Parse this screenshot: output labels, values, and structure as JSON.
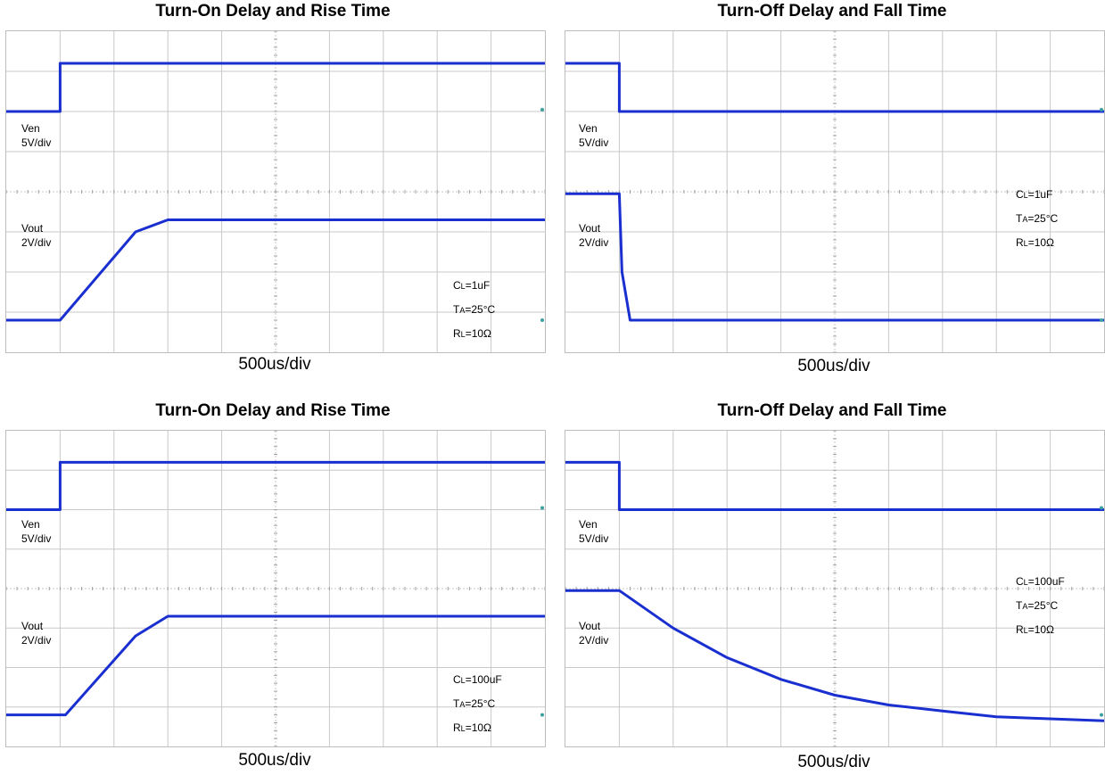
{
  "chart_data": [
    {
      "type": "line",
      "title": "Turn-On Delay and Rise Time",
      "x_unit_label": "500us/div",
      "x_divisions": 10,
      "y_divisions": 8,
      "traces": [
        {
          "name": "Ven",
          "scale": "5V/div",
          "points": [
            [
              0,
              2
            ],
            [
              1,
              2
            ],
            [
              1,
              0.8
            ],
            [
              10,
              0.8
            ]
          ]
        },
        {
          "name": "Vout",
          "scale": "2V/div",
          "points": [
            [
              0,
              7.2
            ],
            [
              1,
              7.2
            ],
            [
              2.4,
              5
            ],
            [
              3,
              4.7
            ],
            [
              10,
              4.7
            ]
          ]
        }
      ],
      "conditions": {
        "cl": "1uF",
        "ta": "25°C",
        "rl": "10Ω"
      }
    },
    {
      "type": "line",
      "title": "Turn-Off Delay and Fall Time",
      "x_unit_label": "500us/div",
      "x_divisions": 10,
      "y_divisions": 8,
      "traces": [
        {
          "name": "Ven",
          "scale": "5V/div",
          "points": [
            [
              0,
              0.8
            ],
            [
              1,
              0.8
            ],
            [
              1,
              2
            ],
            [
              10,
              2
            ]
          ]
        },
        {
          "name": "Vout",
          "scale": "2V/div",
          "points": [
            [
              0,
              4.05
            ],
            [
              1,
              4.05
            ],
            [
              1.05,
              6
            ],
            [
              1.2,
              7.2
            ],
            [
              10,
              7.2
            ]
          ]
        }
      ],
      "conditions": {
        "cl": "1uF",
        "ta": "25°C",
        "rl": "10Ω"
      }
    },
    {
      "type": "line",
      "title": "Turn-On Delay and Rise Time",
      "x_unit_label": "500us/div",
      "x_divisions": 10,
      "y_divisions": 8,
      "traces": [
        {
          "name": "Ven",
          "scale": "5V/div",
          "points": [
            [
              0,
              2
            ],
            [
              1,
              2
            ],
            [
              1,
              0.8
            ],
            [
              10,
              0.8
            ]
          ]
        },
        {
          "name": "Vout",
          "scale": "2V/div",
          "points": [
            [
              0,
              7.2
            ],
            [
              1.1,
              7.2
            ],
            [
              2.4,
              5.2
            ],
            [
              3,
              4.7
            ],
            [
              10,
              4.7
            ]
          ]
        }
      ],
      "conditions": {
        "cl": "100uF",
        "ta": "25°C",
        "rl": "10Ω"
      }
    },
    {
      "type": "line",
      "title": "Turn-Off Delay and Fall Time",
      "x_unit_label": "500us/div",
      "x_divisions": 10,
      "y_divisions": 8,
      "traces": [
        {
          "name": "Ven",
          "scale": "5V/div",
          "points": [
            [
              0,
              0.8
            ],
            [
              1,
              0.8
            ],
            [
              1,
              2
            ],
            [
              10,
              2
            ]
          ]
        },
        {
          "name": "Vout",
          "scale": "2V/div",
          "points": [
            [
              0,
              4.05
            ],
            [
              1,
              4.05
            ],
            [
              2,
              5.0
            ],
            [
              3,
              5.75
            ],
            [
              4,
              6.3
            ],
            [
              5,
              6.7
            ],
            [
              6,
              6.95
            ],
            [
              7,
              7.1
            ],
            [
              8,
              7.25
            ],
            [
              10,
              7.35
            ]
          ]
        }
      ],
      "conditions": {
        "cl": "100uF",
        "ta": "25°C",
        "rl": "10Ω"
      }
    }
  ],
  "colors": {
    "trace": "#1a2fd0",
    "grid": "#c8c8c8",
    "grid_major": "#a0a0a0",
    "marker": "#3aa0a0"
  }
}
